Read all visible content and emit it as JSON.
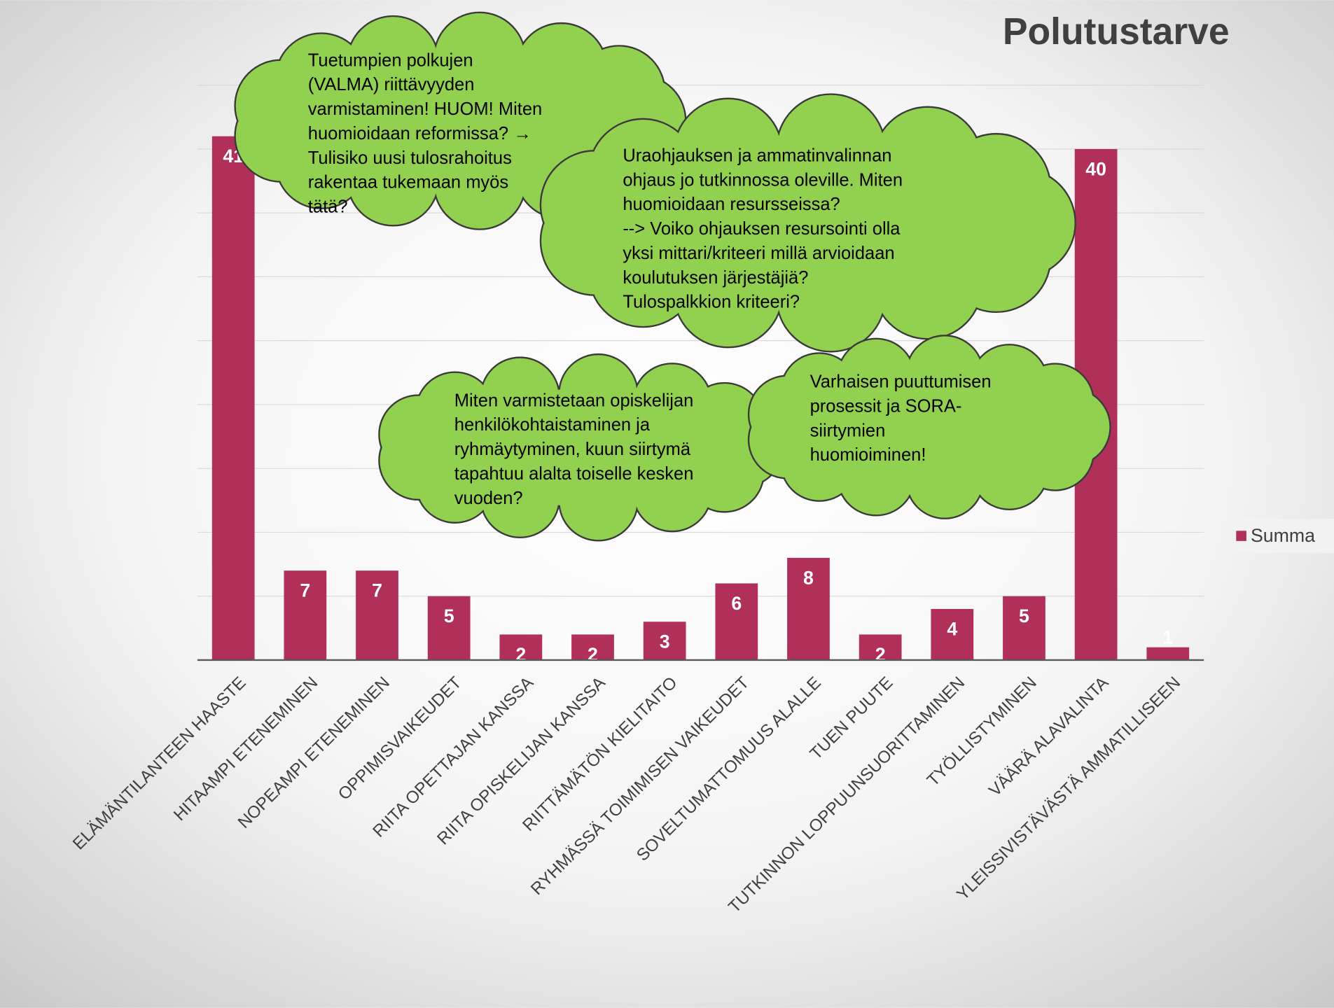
{
  "chart_data": {
    "type": "bar",
    "title": "Polutustarve",
    "categories": [
      "ELÄMÄNTILANTEEN HAASTE",
      "HITAAMPI ETENEMINEN",
      "NOPEAMPI ETENEMINEN",
      "OPPIMISVAIKEUDET",
      "RIITA OPETTAJAN KANSSA",
      "RIITA OPISKELIJAN KANSSA",
      "RIITTÄMÄTÖN KIELITAITO",
      "RYHMÄSSÄ TOIMIMISEN VAIKEUDET",
      "SOVELTUMATTOMUUS ALALLE",
      "TUEN PUUTE",
      "TUTKINNON LOPPUUNSUORITTAMINEN",
      "TYÖLLISTYMINEN",
      "VÄÄRÄ ALAVALINTA",
      "YLEISSIVISTÄVÄSTÄ AMMATILLISEEN"
    ],
    "series": [
      {
        "name": "Summa",
        "color": "#b0305a",
        "values": [
          41,
          7,
          7,
          5,
          2,
          2,
          3,
          6,
          8,
          2,
          4,
          5,
          40,
          1
        ]
      }
    ],
    "ylim": [
      0,
      45
    ],
    "yticks": [
      0,
      5,
      10,
      15,
      20,
      25,
      30,
      35,
      40,
      45
    ],
    "grid": true,
    "legend": "right",
    "annotations": [
      {
        "lines": [
          "Tuetumpien polkujen",
          "(VALMA) riittävyyden",
          "varmistaminen! HUOM! Miten",
          "huomioidaan reformissa? →",
          "Tulisiko uusi tulosrahoitus",
          "rakentaa tukemaan myös",
          "tätä?"
        ]
      },
      {
        "lines": [
          "Uraohjauksen ja ammatinvalinnan",
          "ohjaus jo tutkinnossa oleville. Miten",
          "huomioidaan resursseissa?",
          "--> Voiko ohjauksen resursointi olla",
          "yksi mittari/kriteeri millä arvioidaan",
          "koulutuksen järjestäjiä?",
          "Tulospalkkion kriteeri?"
        ]
      },
      {
        "lines": [
          "Miten varmistetaan opiskelijan",
          "henkilökohtaistaminen ja",
          "ryhmäytyminen, kuun siirtymä",
          "tapahtuu alalta toiselle kesken",
          "vuoden?"
        ]
      },
      {
        "lines": [
          "Varhaisen puuttumisen",
          "prosessit ja SORA-",
          "siirtymien",
          "huomioiminen!"
        ]
      }
    ]
  }
}
